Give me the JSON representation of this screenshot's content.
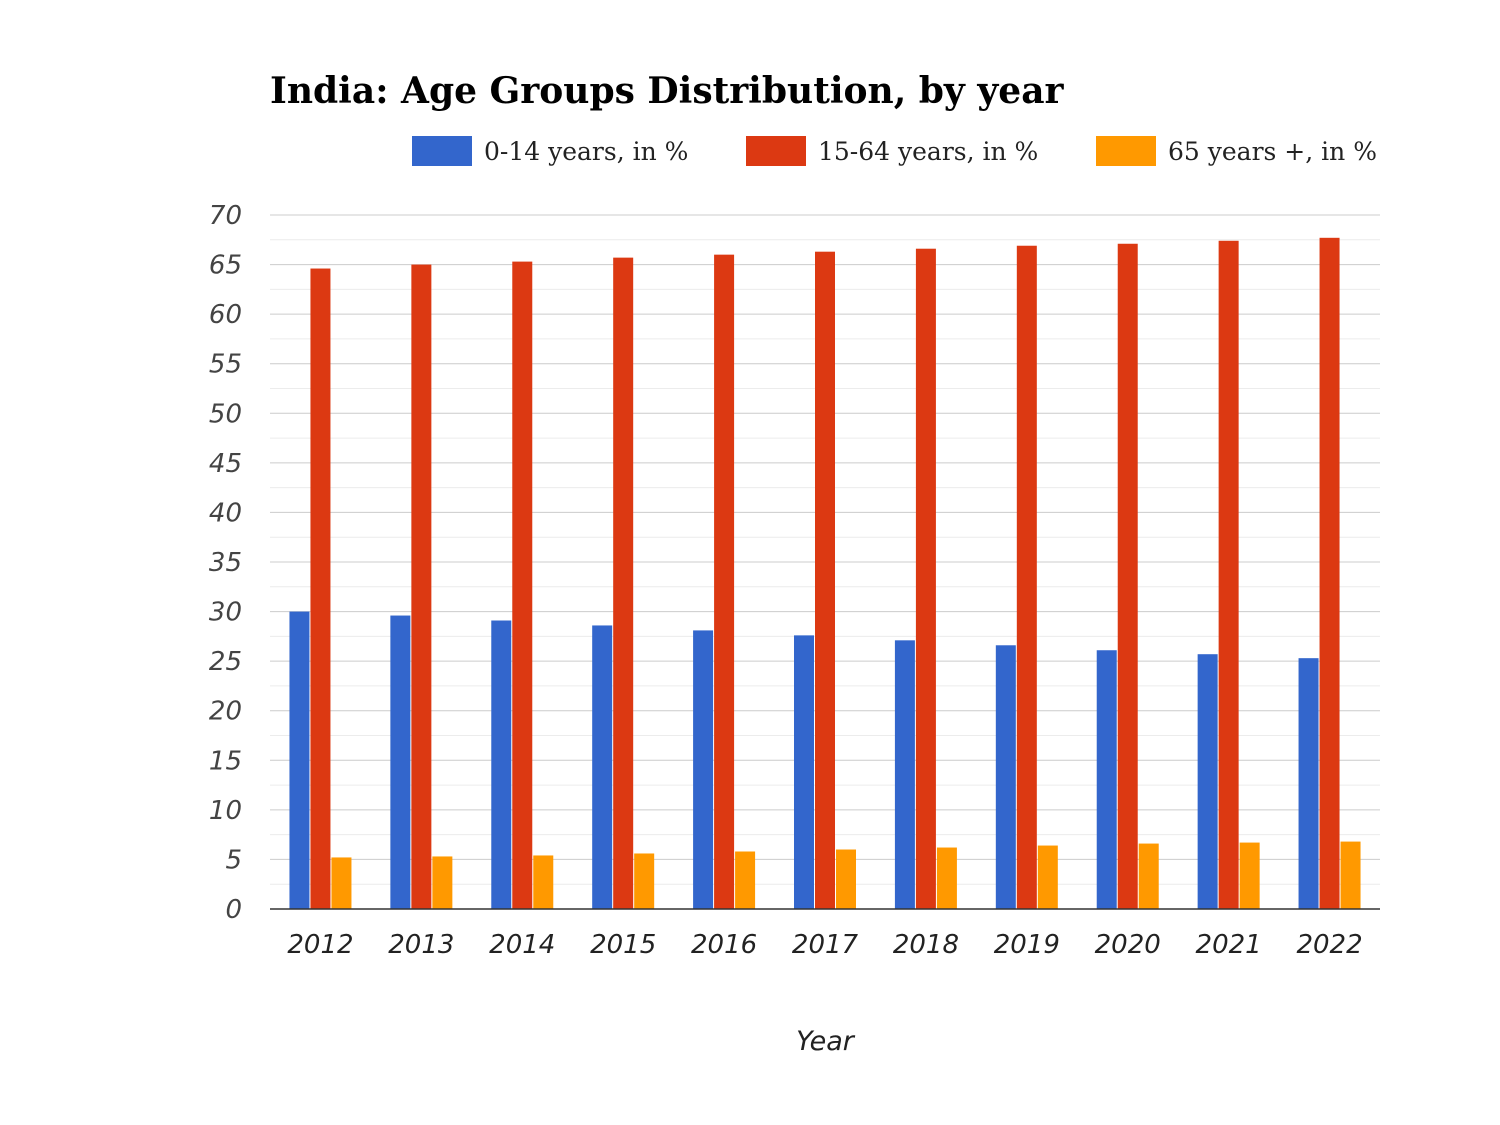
{
  "chart_data": {
    "type": "bar",
    "title": "India: Age Groups Distribution, by year",
    "xlabel": "Year",
    "ylabel": "",
    "ylim": [
      0,
      70
    ],
    "yticks": [
      0,
      5,
      10,
      15,
      20,
      25,
      30,
      35,
      40,
      45,
      50,
      55,
      60,
      65,
      70
    ],
    "ytick_labels": [
      "0",
      "5",
      "10",
      "15",
      "20",
      "25",
      "30",
      "35",
      "40",
      "45",
      "50",
      "55",
      "60",
      "65",
      "70"
    ],
    "grid": true,
    "legend_position": "top",
    "categories": [
      "2012",
      "2013",
      "2014",
      "2015",
      "2016",
      "2017",
      "2018",
      "2019",
      "2020",
      "2021",
      "2022"
    ],
    "series": [
      {
        "name": "0-14 years, in %",
        "color": "#3366cc",
        "values": [
          30.0,
          29.6,
          29.1,
          28.6,
          28.1,
          27.6,
          27.1,
          26.6,
          26.1,
          25.7,
          25.3
        ]
      },
      {
        "name": "15-64 years, in %",
        "color": "#dc3912",
        "values": [
          64.6,
          65.0,
          65.3,
          65.7,
          66.0,
          66.3,
          66.6,
          66.9,
          67.1,
          67.4,
          67.7
        ]
      },
      {
        "name": "65 years +, in %",
        "color": "#ff9900",
        "values": [
          5.2,
          5.3,
          5.4,
          5.6,
          5.8,
          6.0,
          6.2,
          6.4,
          6.6,
          6.7,
          6.8
        ]
      }
    ]
  }
}
